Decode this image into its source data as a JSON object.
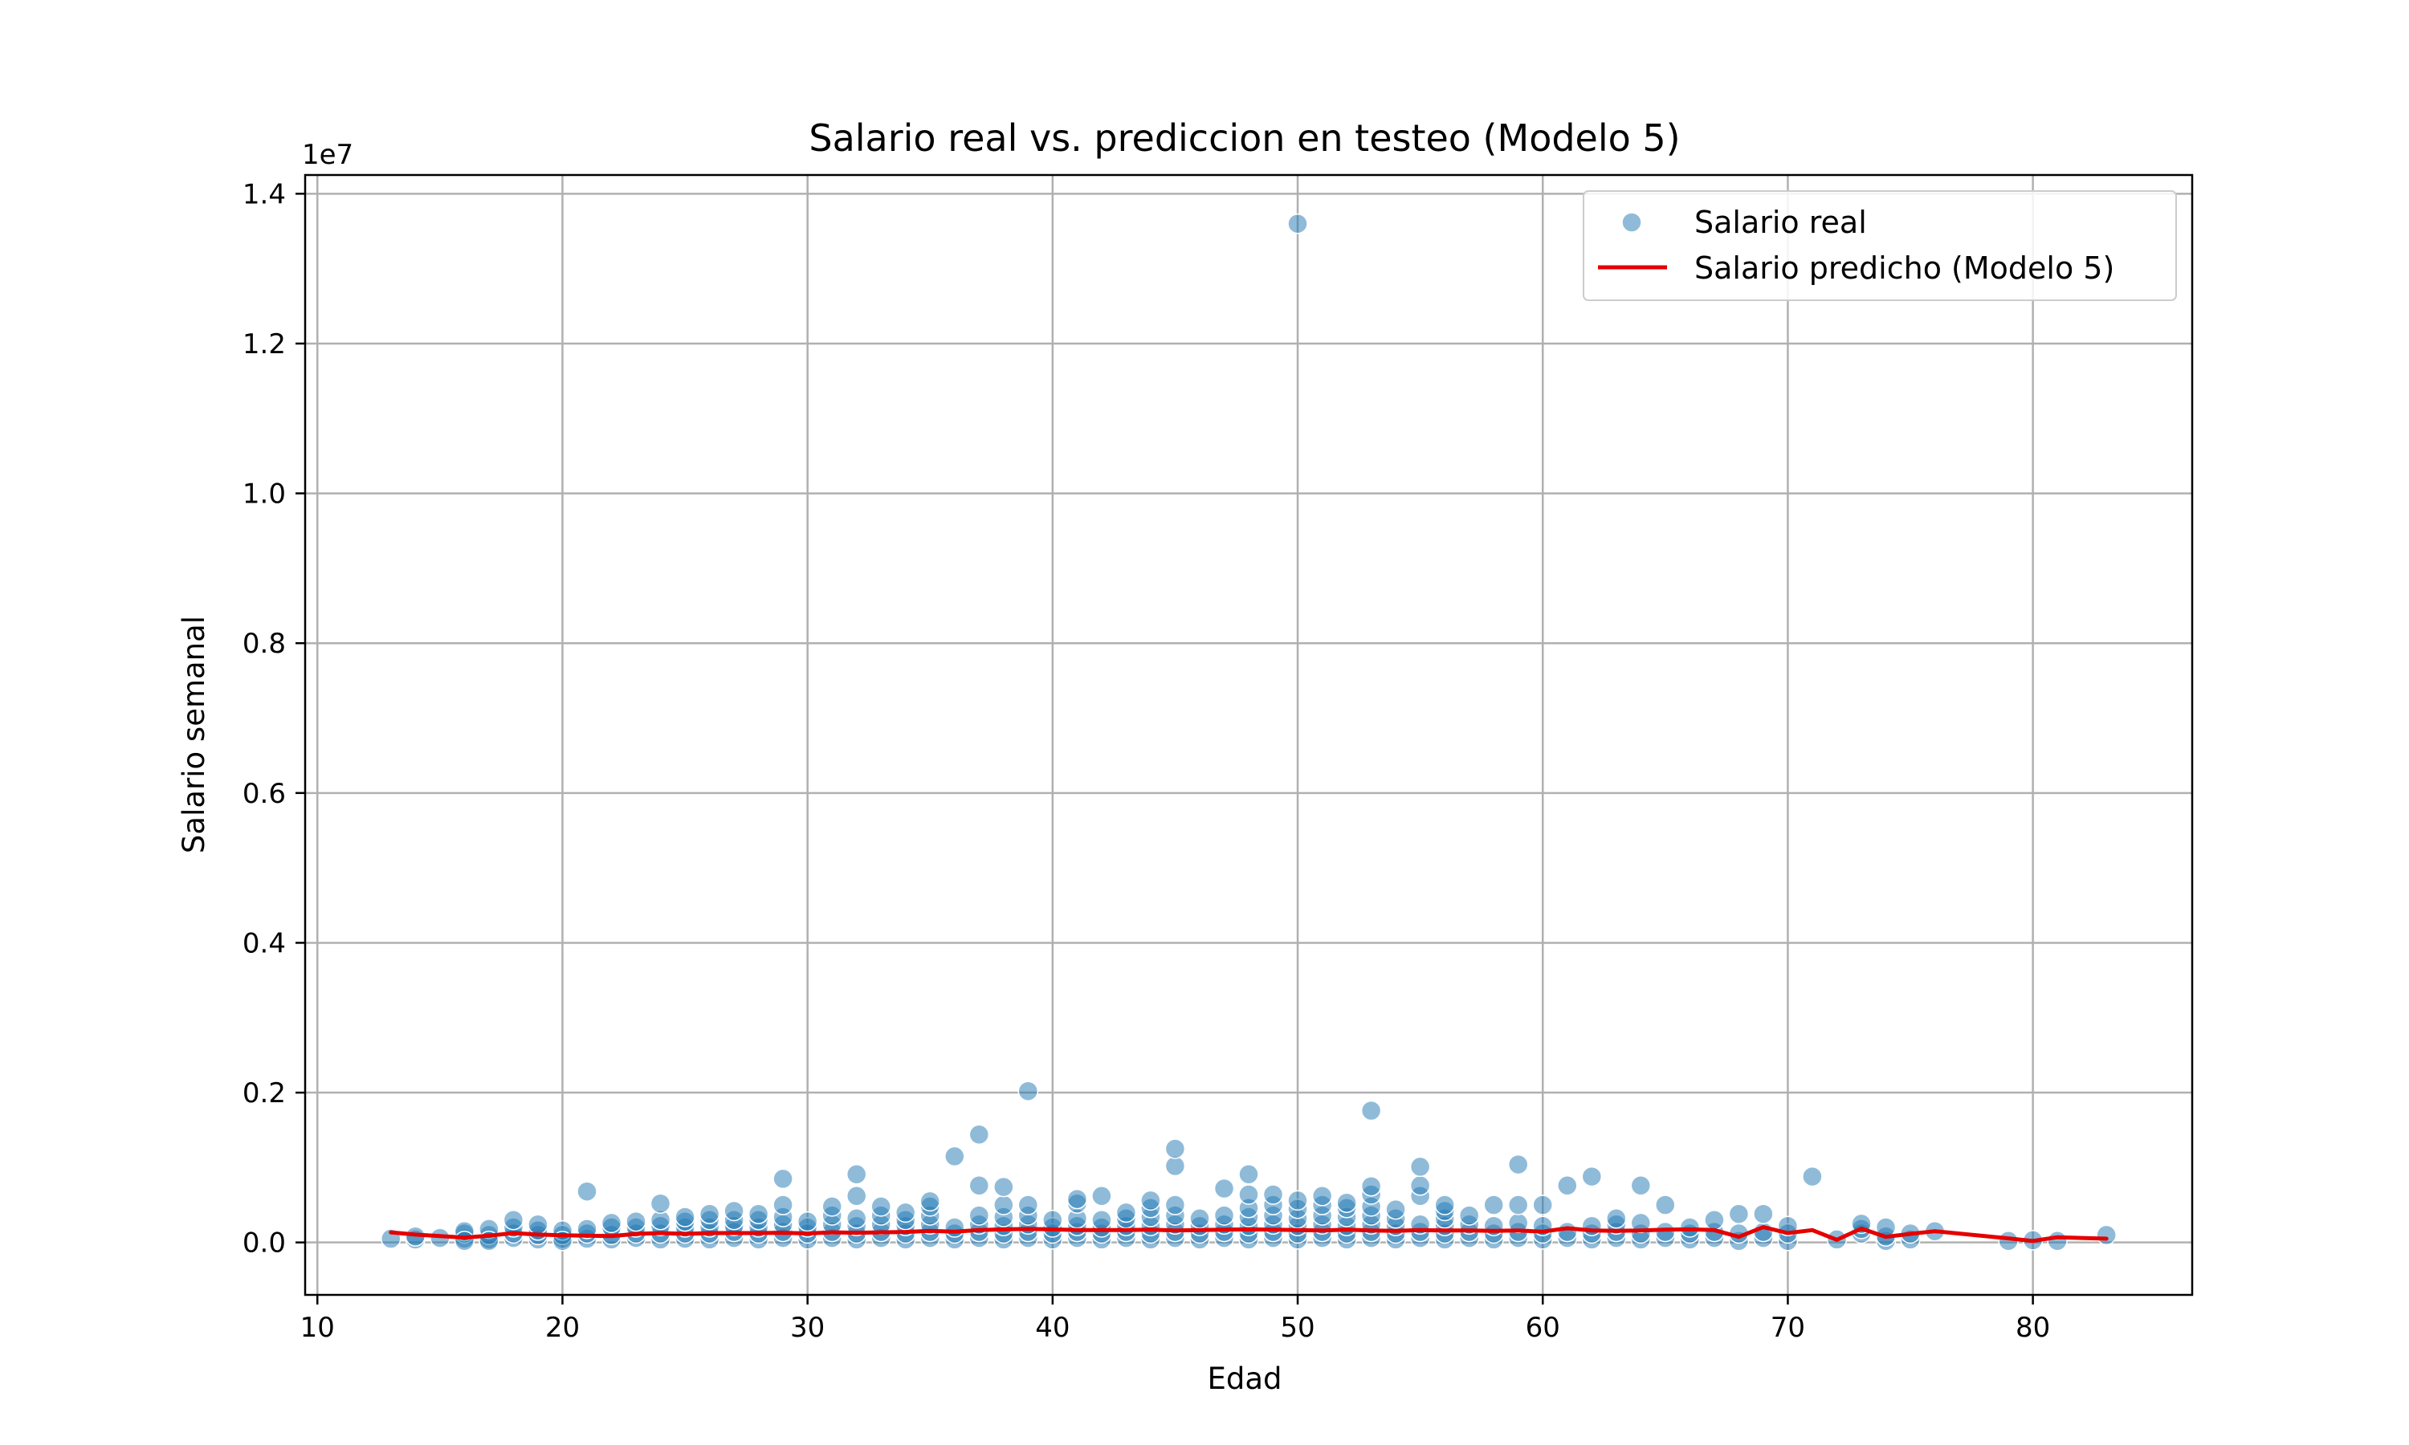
{
  "chart_data": {
    "type": "scatter",
    "title": "Salario real vs. prediccion en testeo (Modelo 5)",
    "xlabel": "Edad",
    "ylabel": "Salario semanal",
    "offset_text": "1e7",
    "xlim": [
      9.5,
      86.5
    ],
    "ylim": [
      -0.07,
      1.425
    ],
    "xticks": [
      10,
      20,
      30,
      40,
      50,
      60,
      70,
      80
    ],
    "yticks": [
      0.0,
      0.2,
      0.4,
      0.6,
      0.8,
      1.0,
      1.2,
      1.4
    ],
    "ytick_labels": [
      "0.0",
      "0.2",
      "0.4",
      "0.6",
      "0.8",
      "1.0",
      "1.2",
      "1.4"
    ],
    "grid": true,
    "legend_position": "top-right",
    "colors": {
      "scatter": "#1f77b4",
      "line": "#e50000"
    },
    "series": [
      {
        "name": "Salario real",
        "kind": "scatter",
        "points": [
          [
            13,
            0.005
          ],
          [
            14,
            0.004
          ],
          [
            14,
            0.008
          ],
          [
            15,
            0.006
          ],
          [
            16,
            0.005
          ],
          [
            16,
            0.012
          ],
          [
            16,
            0.015
          ],
          [
            16,
            0.002
          ],
          [
            17,
            0.004
          ],
          [
            17,
            0.01
          ],
          [
            17,
            0.018
          ],
          [
            17,
            0.002
          ],
          [
            18,
            0.006
          ],
          [
            18,
            0.012
          ],
          [
            18,
            0.02
          ],
          [
            18,
            0.03
          ],
          [
            19,
            0.004
          ],
          [
            19,
            0.01
          ],
          [
            19,
            0.016
          ],
          [
            19,
            0.024
          ],
          [
            20,
            0.005
          ],
          [
            20,
            0.01
          ],
          [
            20,
            0.016
          ],
          [
            20,
            0.002
          ],
          [
            21,
            0.005
          ],
          [
            21,
            0.012
          ],
          [
            21,
            0.018
          ],
          [
            21,
            0.068
          ],
          [
            22,
            0.004
          ],
          [
            22,
            0.01
          ],
          [
            22,
            0.02
          ],
          [
            22,
            0.026
          ],
          [
            23,
            0.006
          ],
          [
            23,
            0.012
          ],
          [
            23,
            0.02
          ],
          [
            23,
            0.028
          ],
          [
            24,
            0.004
          ],
          [
            24,
            0.012
          ],
          [
            24,
            0.022
          ],
          [
            24,
            0.03
          ],
          [
            24,
            0.052
          ],
          [
            25,
            0.005
          ],
          [
            25,
            0.012
          ],
          [
            25,
            0.02
          ],
          [
            25,
            0.028
          ],
          [
            25,
            0.034
          ],
          [
            26,
            0.004
          ],
          [
            26,
            0.012
          ],
          [
            26,
            0.02
          ],
          [
            26,
            0.03
          ],
          [
            26,
            0.038
          ],
          [
            27,
            0.006
          ],
          [
            27,
            0.014
          ],
          [
            27,
            0.022
          ],
          [
            27,
            0.03
          ],
          [
            27,
            0.042
          ],
          [
            28,
            0.004
          ],
          [
            28,
            0.012
          ],
          [
            28,
            0.02
          ],
          [
            28,
            0.03
          ],
          [
            28,
            0.038
          ],
          [
            29,
            0.006
          ],
          [
            29,
            0.014
          ],
          [
            29,
            0.024
          ],
          [
            29,
            0.034
          ],
          [
            29,
            0.05
          ],
          [
            29,
            0.085
          ],
          [
            30,
            0.004
          ],
          [
            30,
            0.012
          ],
          [
            30,
            0.02
          ],
          [
            30,
            0.028
          ],
          [
            31,
            0.006
          ],
          [
            31,
            0.014
          ],
          [
            31,
            0.024
          ],
          [
            31,
            0.036
          ],
          [
            31,
            0.048
          ],
          [
            32,
            0.004
          ],
          [
            32,
            0.012
          ],
          [
            32,
            0.022
          ],
          [
            32,
            0.032
          ],
          [
            32,
            0.062
          ],
          [
            32,
            0.091
          ],
          [
            33,
            0.006
          ],
          [
            33,
            0.014
          ],
          [
            33,
            0.024
          ],
          [
            33,
            0.036
          ],
          [
            33,
            0.048
          ],
          [
            34,
            0.004
          ],
          [
            34,
            0.012
          ],
          [
            34,
            0.022
          ],
          [
            34,
            0.03
          ],
          [
            34,
            0.04
          ],
          [
            35,
            0.006
          ],
          [
            35,
            0.014
          ],
          [
            35,
            0.024
          ],
          [
            35,
            0.036
          ],
          [
            35,
            0.048
          ],
          [
            35,
            0.055
          ],
          [
            36,
            0.004
          ],
          [
            36,
            0.012
          ],
          [
            36,
            0.02
          ],
          [
            36,
            0.115
          ],
          [
            37,
            0.006
          ],
          [
            37,
            0.014
          ],
          [
            37,
            0.024
          ],
          [
            37,
            0.036
          ],
          [
            37,
            0.076
          ],
          [
            37,
            0.144
          ],
          [
            38,
            0.004
          ],
          [
            38,
            0.012
          ],
          [
            38,
            0.022
          ],
          [
            38,
            0.034
          ],
          [
            38,
            0.05
          ],
          [
            38,
            0.074
          ],
          [
            39,
            0.006
          ],
          [
            39,
            0.014
          ],
          [
            39,
            0.024
          ],
          [
            39,
            0.036
          ],
          [
            39,
            0.05
          ],
          [
            39,
            0.202
          ],
          [
            40,
            0.004
          ],
          [
            40,
            0.012
          ],
          [
            40,
            0.02
          ],
          [
            40,
            0.03
          ],
          [
            41,
            0.006
          ],
          [
            41,
            0.014
          ],
          [
            41,
            0.022
          ],
          [
            41,
            0.032
          ],
          [
            41,
            0.052
          ],
          [
            41,
            0.058
          ],
          [
            42,
            0.004
          ],
          [
            42,
            0.012
          ],
          [
            42,
            0.02
          ],
          [
            42,
            0.03
          ],
          [
            42,
            0.062
          ],
          [
            43,
            0.006
          ],
          [
            43,
            0.014
          ],
          [
            43,
            0.022
          ],
          [
            43,
            0.032
          ],
          [
            43,
            0.04
          ],
          [
            44,
            0.004
          ],
          [
            44,
            0.012
          ],
          [
            44,
            0.022
          ],
          [
            44,
            0.034
          ],
          [
            44,
            0.046
          ],
          [
            44,
            0.056
          ],
          [
            45,
            0.006
          ],
          [
            45,
            0.014
          ],
          [
            45,
            0.024
          ],
          [
            45,
            0.036
          ],
          [
            45,
            0.05
          ],
          [
            45,
            0.102
          ],
          [
            45,
            0.125
          ],
          [
            46,
            0.004
          ],
          [
            46,
            0.012
          ],
          [
            46,
            0.022
          ],
          [
            46,
            0.032
          ],
          [
            47,
            0.006
          ],
          [
            47,
            0.014
          ],
          [
            47,
            0.024
          ],
          [
            47,
            0.036
          ],
          [
            47,
            0.072
          ],
          [
            48,
            0.004
          ],
          [
            48,
            0.012
          ],
          [
            48,
            0.022
          ],
          [
            48,
            0.034
          ],
          [
            48,
            0.046
          ],
          [
            48,
            0.064
          ],
          [
            48,
            0.091
          ],
          [
            49,
            0.006
          ],
          [
            49,
            0.014
          ],
          [
            49,
            0.024
          ],
          [
            49,
            0.036
          ],
          [
            49,
            0.05
          ],
          [
            49,
            0.064
          ],
          [
            50,
            0.004
          ],
          [
            50,
            0.012
          ],
          [
            50,
            0.022
          ],
          [
            50,
            0.032
          ],
          [
            50,
            0.045
          ],
          [
            50,
            0.056
          ],
          [
            50,
            1.36
          ],
          [
            51,
            0.006
          ],
          [
            51,
            0.014
          ],
          [
            51,
            0.024
          ],
          [
            51,
            0.036
          ],
          [
            51,
            0.05
          ],
          [
            51,
            0.062
          ],
          [
            52,
            0.004
          ],
          [
            52,
            0.012
          ],
          [
            52,
            0.022
          ],
          [
            52,
            0.034
          ],
          [
            52,
            0.046
          ],
          [
            52,
            0.053
          ],
          [
            53,
            0.006
          ],
          [
            53,
            0.014
          ],
          [
            53,
            0.024
          ],
          [
            53,
            0.036
          ],
          [
            53,
            0.048
          ],
          [
            53,
            0.064
          ],
          [
            53,
            0.075
          ],
          [
            53,
            0.176
          ],
          [
            54,
            0.004
          ],
          [
            54,
            0.012
          ],
          [
            54,
            0.022
          ],
          [
            54,
            0.032
          ],
          [
            54,
            0.044
          ],
          [
            55,
            0.006
          ],
          [
            55,
            0.014
          ],
          [
            55,
            0.024
          ],
          [
            55,
            0.062
          ],
          [
            55,
            0.076
          ],
          [
            55,
            0.101
          ],
          [
            56,
            0.004
          ],
          [
            56,
            0.012
          ],
          [
            56,
            0.022
          ],
          [
            56,
            0.032
          ],
          [
            56,
            0.042
          ],
          [
            56,
            0.05
          ],
          [
            57,
            0.006
          ],
          [
            57,
            0.014
          ],
          [
            57,
            0.024
          ],
          [
            57,
            0.036
          ],
          [
            58,
            0.004
          ],
          [
            58,
            0.012
          ],
          [
            58,
            0.022
          ],
          [
            58,
            0.05
          ],
          [
            59,
            0.006
          ],
          [
            59,
            0.014
          ],
          [
            59,
            0.026
          ],
          [
            59,
            0.05
          ],
          [
            59,
            0.104
          ],
          [
            60,
            0.004
          ],
          [
            60,
            0.012
          ],
          [
            60,
            0.022
          ],
          [
            60,
            0.05
          ],
          [
            61,
            0.006
          ],
          [
            61,
            0.014
          ],
          [
            61,
            0.076
          ],
          [
            62,
            0.004
          ],
          [
            62,
            0.012
          ],
          [
            62,
            0.022
          ],
          [
            62,
            0.088
          ],
          [
            63,
            0.006
          ],
          [
            63,
            0.014
          ],
          [
            63,
            0.024
          ],
          [
            63,
            0.032
          ],
          [
            64,
            0.004
          ],
          [
            64,
            0.012
          ],
          [
            64,
            0.026
          ],
          [
            64,
            0.076
          ],
          [
            65,
            0.006
          ],
          [
            65,
            0.014
          ],
          [
            65,
            0.05
          ],
          [
            66,
            0.004
          ],
          [
            66,
            0.012
          ],
          [
            66,
            0.02
          ],
          [
            67,
            0.006
          ],
          [
            67,
            0.014
          ],
          [
            67,
            0.03
          ],
          [
            68,
            0.002
          ],
          [
            68,
            0.012
          ],
          [
            68,
            0.038
          ],
          [
            69,
            0.006
          ],
          [
            69,
            0.014
          ],
          [
            69,
            0.038
          ],
          [
            70,
            0.002
          ],
          [
            70,
            0.012
          ],
          [
            70,
            0.022
          ],
          [
            71,
            0.088
          ],
          [
            72,
            0.004
          ],
          [
            73,
            0.012
          ],
          [
            73,
            0.018
          ],
          [
            73,
            0.025
          ],
          [
            74,
            0.002
          ],
          [
            74,
            0.008
          ],
          [
            74,
            0.02
          ],
          [
            75,
            0.004
          ],
          [
            75,
            0.012
          ],
          [
            76,
            0.015
          ],
          [
            79,
            0.002
          ],
          [
            80,
            0.003
          ],
          [
            81,
            0.002
          ],
          [
            83,
            0.01
          ]
        ]
      },
      {
        "name": "Salario predicho (Modelo 5)",
        "kind": "line",
        "x": [
          13,
          14,
          15,
          16,
          17,
          18,
          19,
          20,
          21,
          22,
          23,
          24,
          25,
          26,
          27,
          28,
          29,
          30,
          31,
          32,
          33,
          34,
          35,
          36,
          37,
          38,
          39,
          40,
          41,
          42,
          43,
          44,
          45,
          46,
          47,
          48,
          49,
          50,
          51,
          52,
          53,
          54,
          55,
          56,
          57,
          58,
          59,
          60,
          61,
          62,
          63,
          64,
          65,
          66,
          67,
          68,
          69,
          70,
          71,
          72,
          73,
          74,
          75,
          76,
          79,
          80,
          81,
          83
        ],
        "y": [
          0.0135,
          0.0105,
          0.0085,
          0.0065,
          0.009,
          0.0125,
          0.0105,
          0.0095,
          0.009,
          0.0085,
          0.0115,
          0.0125,
          0.0115,
          0.0125,
          0.0125,
          0.0125,
          0.013,
          0.012,
          0.0135,
          0.013,
          0.0135,
          0.014,
          0.0155,
          0.0145,
          0.0165,
          0.0175,
          0.018,
          0.0175,
          0.0165,
          0.0165,
          0.0165,
          0.017,
          0.016,
          0.0165,
          0.017,
          0.0175,
          0.017,
          0.0165,
          0.016,
          0.017,
          0.016,
          0.0155,
          0.0165,
          0.016,
          0.016,
          0.0155,
          0.016,
          0.0145,
          0.019,
          0.016,
          0.0155,
          0.016,
          0.017,
          0.0175,
          0.0165,
          0.0075,
          0.0205,
          0.0125,
          0.0165,
          0.0035,
          0.0185,
          0.0075,
          0.0115,
          0.015,
          0.0055,
          0.002,
          0.007,
          0.005
        ]
      }
    ]
  }
}
